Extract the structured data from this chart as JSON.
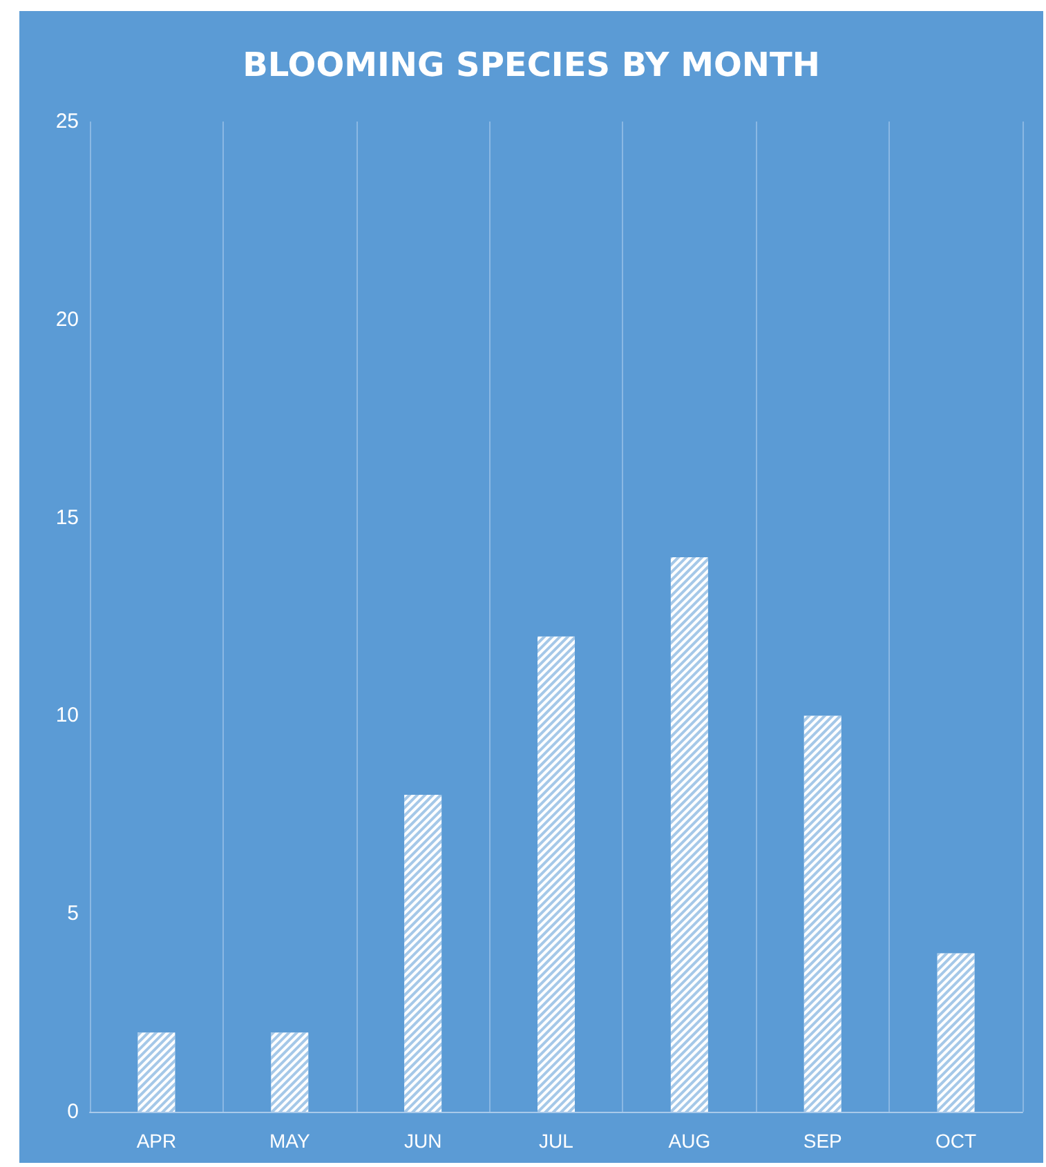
{
  "chart_data": {
    "type": "bar",
    "title": "BLOOMING SPECIES BY MONTH",
    "categories": [
      "APR",
      "MAY",
      "JUN",
      "JUL",
      "AUG",
      "SEP",
      "OCT"
    ],
    "values": [
      2,
      2,
      8,
      12,
      14,
      10,
      4
    ],
    "color": "#ffffff",
    "ylim": [
      0,
      25
    ],
    "yticks": [
      0,
      5,
      10,
      15,
      20,
      25
    ],
    "grid": "x"
  }
}
